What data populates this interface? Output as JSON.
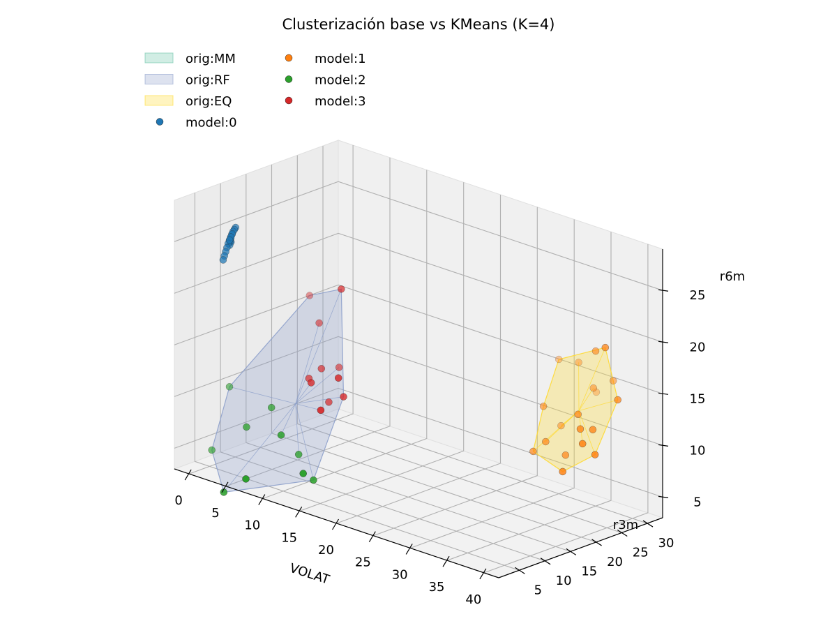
{
  "chart_data": {
    "type": "scatter3d",
    "title": "Clusterización base vs KMeans (K=4)",
    "xlabel": "VOLAT",
    "ylabel": "r3m",
    "zlabel": "r6m",
    "xticks": [
      0,
      5,
      10,
      15,
      20,
      25,
      30,
      35,
      40
    ],
    "yticks": [
      5,
      10,
      15,
      20,
      25,
      30
    ],
    "zticks": [
      5,
      10,
      15,
      20,
      25
    ],
    "xlim": [
      -2,
      42
    ],
    "ylim": [
      1,
      33
    ],
    "zlim": [
      3,
      29
    ],
    "grid": true,
    "legend_position": "top-left",
    "colors": {
      "MM": "#66c2a5",
      "RF": "#8da0cb",
      "EQ": "#ffd92f",
      "model0": "#1f77b4",
      "model1": "#ff7f0e",
      "model2": "#2ca02c",
      "model3": "#d62728"
    },
    "legend": [
      {
        "label": "orig:MM",
        "kind": "patch",
        "color_key": "MM"
      },
      {
        "label": "orig:RF",
        "kind": "patch",
        "color_key": "RF"
      },
      {
        "label": "orig:EQ",
        "kind": "patch",
        "color_key": "EQ"
      },
      {
        "label": "model:0",
        "kind": "point",
        "color_key": "model0"
      },
      {
        "label": "model:1",
        "kind": "point",
        "color_key": "model1"
      },
      {
        "label": "model:2",
        "kind": "point",
        "color_key": "model2"
      },
      {
        "label": "model:3",
        "kind": "point",
        "color_key": "model3"
      }
    ],
    "series": [
      {
        "name": "model:0",
        "color_key": "model0",
        "points": [
          [
            3.2,
            4.5,
            26.0
          ],
          [
            3.3,
            4.6,
            26.3
          ],
          [
            3.1,
            4.4,
            25.7
          ],
          [
            3.4,
            4.7,
            26.6
          ],
          [
            3.0,
            4.3,
            25.4
          ],
          [
            3.2,
            4.5,
            25.9
          ],
          [
            3.5,
            4.8,
            26.8
          ],
          [
            2.9,
            4.2,
            25.0
          ],
          [
            3.1,
            4.6,
            25.6
          ],
          [
            3.3,
            4.4,
            26.1
          ],
          [
            2.8,
            4.1,
            24.6
          ],
          [
            3.4,
            4.5,
            26.4
          ],
          [
            3.0,
            4.6,
            25.2
          ],
          [
            3.6,
            4.9,
            27.0
          ],
          [
            2.7,
            4.0,
            24.2
          ],
          [
            3.2,
            4.3,
            25.8
          ],
          [
            2.6,
            3.9,
            23.8
          ],
          [
            3.1,
            4.7,
            25.5
          ]
        ]
      },
      {
        "name": "model:1",
        "color_key": "model1",
        "points": [
          [
            32,
            31,
            16
          ],
          [
            35,
            30,
            18
          ],
          [
            37,
            29,
            19
          ],
          [
            36,
            32,
            15
          ],
          [
            34,
            31,
            14
          ],
          [
            30,
            30,
            16
          ],
          [
            38,
            30,
            14
          ],
          [
            33,
            33,
            13
          ],
          [
            34,
            28,
            12
          ],
          [
            36,
            28,
            11
          ],
          [
            31,
            26,
            9
          ],
          [
            33,
            27,
            8
          ],
          [
            31,
            29,
            10
          ],
          [
            35,
            27,
            11
          ],
          [
            37,
            27,
            9
          ],
          [
            30,
            27,
            12
          ],
          [
            30,
            25,
            8
          ],
          [
            34,
            25,
            7
          ],
          [
            36,
            26,
            10
          ]
        ]
      },
      {
        "name": "model:2",
        "color_key": "model2",
        "points": [
          [
            2,
            6,
            11
          ],
          [
            7,
            7,
            10
          ],
          [
            9,
            6,
            8
          ],
          [
            5,
            5,
            8
          ],
          [
            10,
            8,
            6
          ],
          [
            12,
            6,
            5
          ],
          [
            12,
            8,
            4
          ],
          [
            1,
            4,
            5
          ],
          [
            4,
            2,
            2
          ],
          [
            7,
            2,
            4
          ]
        ]
      },
      {
        "name": "model:3",
        "color_key": "model3",
        "points": [
          [
            10,
            12,
            18
          ],
          [
            8,
            13,
            20
          ],
          [
            13,
            12,
            22
          ],
          [
            11,
            11,
            14
          ],
          [
            12,
            13,
            14
          ],
          [
            14,
            10,
            14
          ],
          [
            14,
            11,
            12
          ],
          [
            12,
            11,
            11
          ],
          [
            11,
            9,
            13
          ],
          [
            10,
            10,
            13
          ],
          [
            13,
            8,
            11
          ]
        ]
      }
    ],
    "hulls": [
      {
        "name": "orig:RF",
        "color_key": "RF",
        "series_refs": [
          [
            2,
            "all"
          ],
          [
            3,
            "all"
          ]
        ]
      },
      {
        "name": "orig:EQ",
        "color_key": "EQ",
        "series_refs": [
          [
            1,
            "all"
          ]
        ]
      }
    ]
  }
}
